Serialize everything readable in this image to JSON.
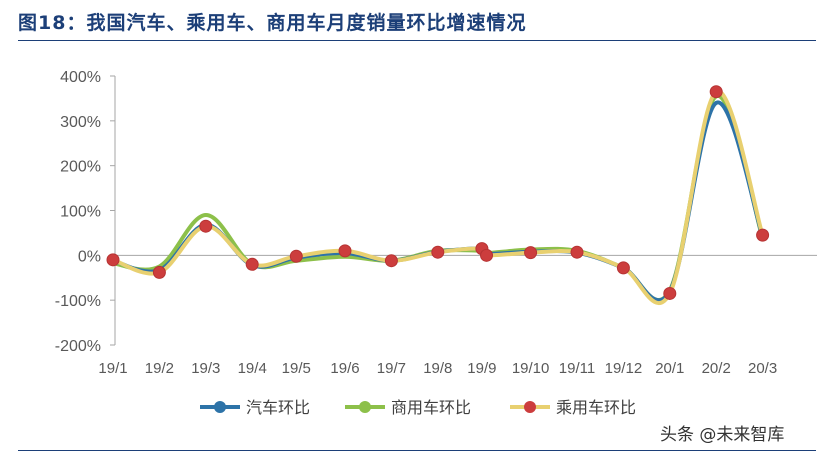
{
  "header": {
    "title": "图18：我国汽车、乘用车、商用车月度销量环比增速情况"
  },
  "watermark": "头条 @未来智库",
  "chart_data": {
    "type": "line",
    "title": "",
    "xlabel": "",
    "ylabel": "",
    "categories": [
      "19/1",
      "19/2",
      "19/3",
      "19/4",
      "19/5",
      "19/6",
      "19/7",
      "19/8",
      "19/9",
      "19/10",
      "19/11",
      "19/12",
      "20/1",
      "20/2",
      "20/3"
    ],
    "x": [
      0,
      1,
      2,
      3,
      3.95,
      5,
      6,
      7,
      7.95,
      8.05,
      9,
      10,
      11,
      12,
      13,
      14
    ],
    "x_labels": [
      "19/1",
      "19/2",
      "19/3",
      "19/4",
      "19/5",
      "19/6",
      "19/7",
      "19/8",
      "19/9",
      "",
      "19/10",
      "19/11",
      "19/12",
      "20/1",
      "20/2",
      "20/3"
    ],
    "y_ticks": [
      "400%",
      "300%",
      "200%",
      "100%",
      "0%",
      "-100%",
      "-200%"
    ],
    "ylim": [
      -200,
      400
    ],
    "y_unit": "%",
    "grid": false,
    "smooth": true,
    "legend_position": "bottom",
    "series": [
      {
        "name": "汽车环比",
        "color": "#2d73a8",
        "marker": "none",
        "values": [
          -12,
          -33,
          68,
          -22,
          -5,
          5,
          -12,
          8,
          15,
          3,
          8,
          6,
          -28,
          -80,
          340,
          42
        ]
      },
      {
        "name": "商用车环比",
        "color": "#8dc04a",
        "marker": "none",
        "values": [
          -18,
          -25,
          90,
          -20,
          -12,
          -3,
          -12,
          10,
          10,
          5,
          13,
          10,
          -28,
          -78,
          355,
          38
        ]
      },
      {
        "name": "乘用车环比",
        "color": "#e8d070",
        "marker": "circle",
        "marker_color": "#cc3d3d",
        "values": [
          -10,
          -38,
          65,
          -20,
          -2,
          10,
          -12,
          7,
          15,
          0,
          6,
          7,
          -28,
          -85,
          365,
          45
        ]
      }
    ]
  }
}
